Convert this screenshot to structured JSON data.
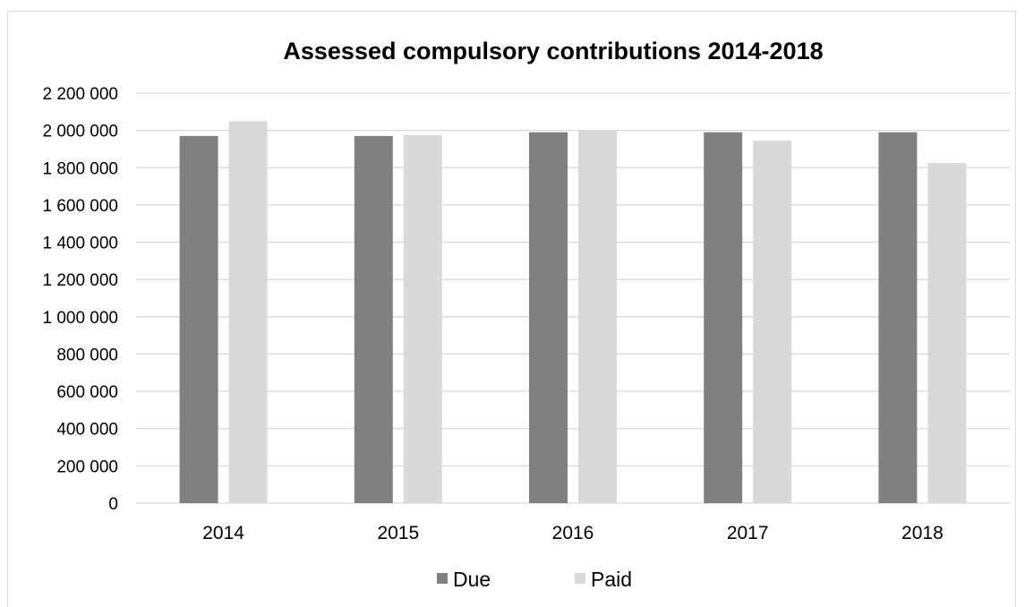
{
  "chart_data": {
    "type": "bar",
    "title": "Assessed compulsory contributions 2014-2018",
    "xlabel": "",
    "ylabel": "",
    "categories": [
      "2014",
      "2015",
      "2016",
      "2017",
      "2018"
    ],
    "series": [
      {
        "name": "Due",
        "color": "#808080",
        "values": [
          1970000,
          1970000,
          1990000,
          1990000,
          1990000
        ]
      },
      {
        "name": "Paid",
        "color": "#d9d9d9",
        "values": [
          2050000,
          1975000,
          2000000,
          1945000,
          1825000
        ]
      }
    ],
    "ylim": [
      0,
      2200000
    ],
    "yticks": [
      0,
      200000,
      400000,
      600000,
      800000,
      1000000,
      1200000,
      1400000,
      1600000,
      1800000,
      2000000,
      2200000
    ],
    "ytick_labels": [
      "0",
      "200 000",
      "400 000",
      "600 000",
      "800 000",
      "1 000 000",
      "1 200 000",
      "1 400 000",
      "1 600 000",
      "1 800 000",
      "2 000 000",
      "2 200 000"
    ],
    "grid": true,
    "legend_position": "bottom",
    "gridline_color": "#d9d9d9"
  }
}
